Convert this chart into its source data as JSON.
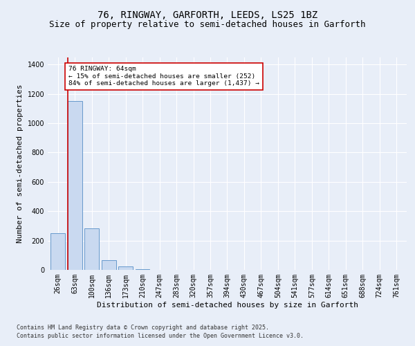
{
  "title1": "76, RINGWAY, GARFORTH, LEEDS, LS25 1BZ",
  "title2": "Size of property relative to semi-detached houses in Garforth",
  "xlabel": "Distribution of semi-detached houses by size in Garforth",
  "ylabel": "Number of semi-detached properties",
  "categories": [
    "26sqm",
    "63sqm",
    "100sqm",
    "136sqm",
    "173sqm",
    "210sqm",
    "247sqm",
    "283sqm",
    "320sqm",
    "357sqm",
    "394sqm",
    "430sqm",
    "467sqm",
    "504sqm",
    "541sqm",
    "577sqm",
    "614sqm",
    "651sqm",
    "688sqm",
    "724sqm",
    "761sqm"
  ],
  "values": [
    252,
    1150,
    285,
    65,
    25,
    7,
    0,
    0,
    0,
    0,
    0,
    0,
    0,
    0,
    0,
    0,
    0,
    0,
    0,
    0,
    0
  ],
  "bar_color": "#c9d9f0",
  "bar_edge_color": "#6699cc",
  "highlight_color": "#cc0000",
  "annotation_text": "76 RINGWAY: 64sqm\n← 15% of semi-detached houses are smaller (252)\n84% of semi-detached houses are larger (1,437) →",
  "annotation_box_color": "#ffffff",
  "annotation_box_edge": "#cc0000",
  "ylim": [
    0,
    1450
  ],
  "yticks": [
    0,
    200,
    400,
    600,
    800,
    1000,
    1200,
    1400
  ],
  "footer1": "Contains HM Land Registry data © Crown copyright and database right 2025.",
  "footer2": "Contains public sector information licensed under the Open Government Licence v3.0.",
  "bg_color": "#e8eef8",
  "plot_bg": "#e8eef8",
  "title_fontsize": 10,
  "subtitle_fontsize": 9,
  "tick_fontsize": 7,
  "label_fontsize": 8,
  "footer_fontsize": 6
}
